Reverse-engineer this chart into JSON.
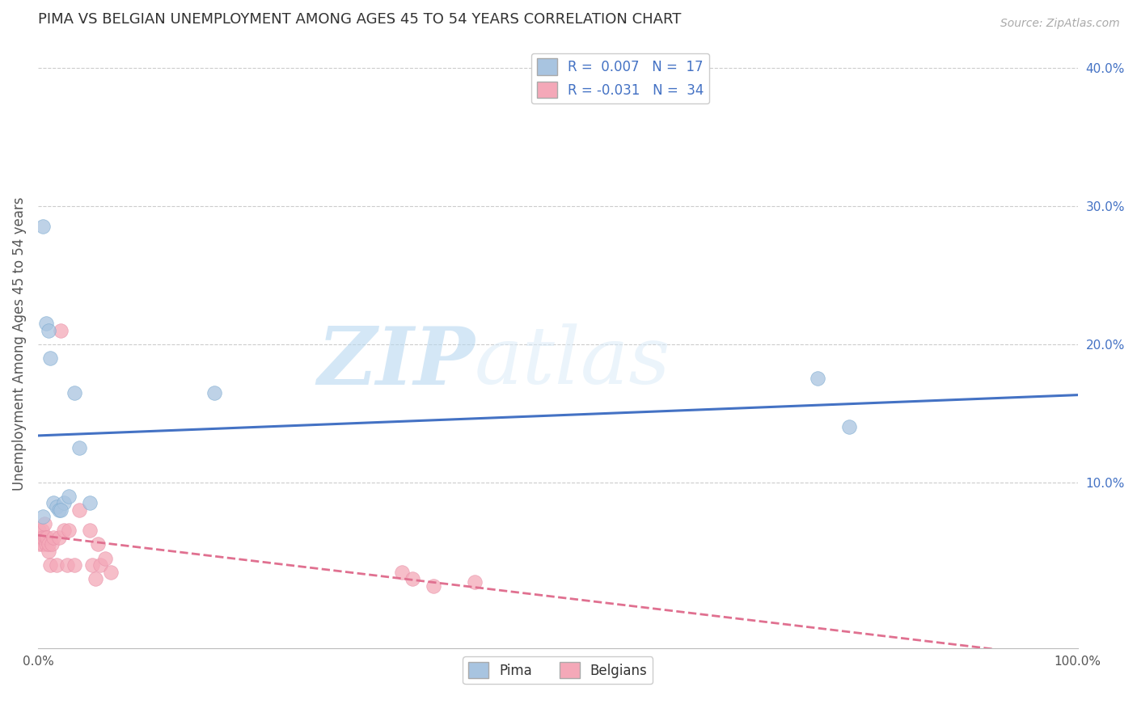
{
  "title": "PIMA VS BELGIAN UNEMPLOYMENT AMONG AGES 45 TO 54 YEARS CORRELATION CHART",
  "source": "Source: ZipAtlas.com",
  "ylabel": "Unemployment Among Ages 45 to 54 years",
  "xlim": [
    0.0,
    1.0
  ],
  "ylim": [
    -0.02,
    0.42
  ],
  "xticks": [
    0.0,
    0.1,
    0.2,
    0.3,
    0.4,
    0.5,
    0.6,
    0.7,
    0.8,
    0.9,
    1.0
  ],
  "xticklabels": [
    "0.0%",
    "",
    "",
    "",
    "",
    "",
    "",
    "",
    "",
    "",
    "100.0%"
  ],
  "yticks_left": [],
  "yticks_right": [
    0.1,
    0.2,
    0.3,
    0.4
  ],
  "ytick_right_labels": [
    "10.0%",
    "20.0%",
    "30.0%",
    "40.0%"
  ],
  "pima_color": "#a8c4e0",
  "belgians_color": "#f4a8b8",
  "pima_edge_color": "#7aaad0",
  "belgians_edge_color": "#e890a8",
  "pima_line_color": "#4472c4",
  "belgians_line_color": "#e07090",
  "legend_label_1": "R =  0.007   N =  17",
  "legend_label_2": "R = -0.031   N =  34",
  "watermark_zip": "ZIP",
  "watermark_atlas": "atlas",
  "background_color": "#ffffff",
  "grid_color": "#cccccc",
  "pima_x": [
    0.005,
    0.008,
    0.01,
    0.012,
    0.015,
    0.018,
    0.02,
    0.025,
    0.03,
    0.035,
    0.04,
    0.05,
    0.17,
    0.75,
    0.78,
    0.005,
    0.022
  ],
  "pima_y": [
    0.285,
    0.215,
    0.21,
    0.19,
    0.085,
    0.082,
    0.08,
    0.085,
    0.09,
    0.165,
    0.125,
    0.085,
    0.165,
    0.175,
    0.14,
    0.075,
    0.08
  ],
  "belgians_x": [
    0.001,
    0.002,
    0.003,
    0.004,
    0.005,
    0.005,
    0.006,
    0.007,
    0.008,
    0.009,
    0.01,
    0.01,
    0.012,
    0.013,
    0.015,
    0.018,
    0.02,
    0.022,
    0.025,
    0.028,
    0.03,
    0.035,
    0.04,
    0.05,
    0.052,
    0.055,
    0.058,
    0.06,
    0.065,
    0.07,
    0.35,
    0.36,
    0.38,
    0.42
  ],
  "belgians_y": [
    0.065,
    0.055,
    0.06,
    0.065,
    0.055,
    0.06,
    0.07,
    0.06,
    0.055,
    0.06,
    0.05,
    0.055,
    0.04,
    0.055,
    0.06,
    0.04,
    0.06,
    0.21,
    0.065,
    0.04,
    0.065,
    0.04,
    0.08,
    0.065,
    0.04,
    0.03,
    0.055,
    0.04,
    0.045,
    0.035,
    0.035,
    0.03,
    0.025,
    0.028
  ]
}
